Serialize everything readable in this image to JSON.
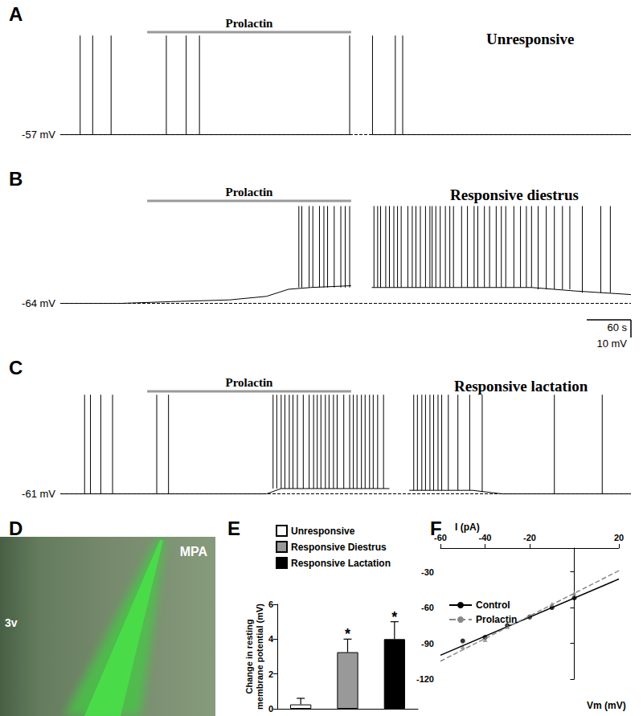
{
  "chart_data": [
    {
      "panel": "A",
      "type": "line",
      "title": "Unresponsive",
      "color": "#000000",
      "x": [
        0,
        395,
        409,
        423,
        775
      ],
      "values": [
        -57,
        -57,
        null,
        -57,
        -57
      ],
      "spikes": [
        {
          "base": -57,
          "times": [
            27,
            44,
            69,
            144,
            171,
            189,
            393,
            424,
            455,
            465
          ]
        }
      ],
      "spike_peak": -1,
      "treatment": {
        "label": "Prolactin",
        "start": 118,
        "end": 395
      },
      "xlim": [
        0,
        775
      ],
      "ylim": [
        -64,
        10
      ],
      "yticks": [
        {
          "value": -57,
          "label": "-57 mV"
        }
      ],
      "grid": true,
      "tick_labels": "y"
    },
    {
      "panel": "B",
      "type": "line",
      "title": "Responsive diestrus",
      "color": "#000000",
      "x": [
        0,
        80,
        150,
        230,
        280,
        310,
        340,
        395,
        409,
        423,
        640,
        700,
        775
      ],
      "values": [
        -64,
        -64,
        -63,
        -62,
        -60,
        -56,
        -55,
        -54,
        null,
        -55,
        -55,
        -57,
        -59
      ],
      "spikes": [
        {
          "base": -55,
          "times": [
            324,
            328,
            338,
            343,
            352,
            358,
            363,
            372,
            381,
            387,
            393
          ]
        },
        {
          "base": -55,
          "times": [
            426,
            431,
            435,
            442,
            447,
            453,
            458,
            463,
            472,
            478,
            483,
            489,
            496,
            502,
            505,
            510,
            516,
            523,
            529,
            534,
            545,
            553,
            562,
            567,
            576,
            583,
            592,
            599,
            605,
            616,
            625,
            633,
            640
          ]
        },
        {
          "base": -56,
          "times": [
            649,
            660,
            671,
            682,
            692
          ]
        },
        {
          "base": -58,
          "times": [
            709,
            734,
            747
          ]
        }
      ],
      "spike_peak": -9,
      "treatment": {
        "label": "Prolactin",
        "start": 118,
        "end": 395
      },
      "scale_bar": {
        "x": 60,
        "y": 10,
        "x_label": "60 s",
        "y_label": "10 mV"
      },
      "xlim": [
        0,
        775
      ],
      "ylim": [
        -71,
        3
      ],
      "yticks": [
        {
          "value": -64,
          "label": "-64 mV"
        }
      ],
      "grid": true,
      "tick_labels": "y"
    },
    {
      "panel": "C",
      "type": "line",
      "title": "Responsive lactation",
      "color": "#000000",
      "x": [
        0,
        280,
        300,
        447,
        460,
        474,
        560,
        600,
        775
      ],
      "values": [
        -61,
        -61,
        -58,
        -58,
        null,
        -59,
        -59,
        -61,
        -61
      ],
      "spikes": [
        {
          "base": -61,
          "times": [
            33,
            41,
            55,
            71,
            131,
            147
          ]
        },
        {
          "base": -58,
          "times": [
            289,
            294,
            300,
            305,
            311,
            316,
            322,
            330,
            338,
            344,
            349,
            354,
            360,
            365,
            371,
            376,
            385,
            393,
            398,
            403,
            409,
            414,
            420,
            425,
            431,
            439
          ]
        },
        {
          "base": -59,
          "times": [
            480,
            485,
            491,
            496,
            502,
            507,
            513,
            518,
            527,
            540,
            556
          ]
        },
        {
          "base": -60,
          "times": [
            573
          ]
        },
        {
          "base": -61,
          "times": [
            671,
            736
          ]
        }
      ],
      "spike_peak": -5,
      "treatment": {
        "label": "Prolactin",
        "start": 118,
        "end": 395
      },
      "xlim": [
        0,
        775
      ],
      "ylim": [
        -68,
        6
      ],
      "yticks": [
        {
          "value": -61,
          "label": "-61 mV"
        }
      ],
      "grid": true,
      "tick_labels": "y"
    },
    {
      "panel": "D",
      "type": "image",
      "labels": [
        "MPA",
        "3v"
      ]
    },
    {
      "panel": "E",
      "type": "bar",
      "categories": [
        "Unresponsive",
        "Responsive Diestrus",
        "Responsive Lactation"
      ],
      "values": [
        0.25,
        3.25,
        4.0
      ],
      "errors": [
        0.35,
        0.75,
        1.0
      ],
      "significance": [
        null,
        "*",
        "*"
      ],
      "colors": [
        "#ffffff",
        "#999999",
        "#000000"
      ],
      "ylabel": "Change in resting\nmembrane potential (mV)",
      "ylim": [
        0,
        6
      ],
      "yticks": [
        0,
        2,
        4,
        6
      ],
      "legend": "top-left",
      "tick_labels": "y"
    },
    {
      "panel": "F",
      "type": "line",
      "xlabel": "I (pA)",
      "ylabel": "Vm (mV)",
      "xlim": [
        -60,
        20
      ],
      "xticks": [
        -60,
        -40,
        -20,
        20
      ],
      "ylim": [
        -120,
        -10
      ],
      "yticks": [
        -120,
        -90,
        -60,
        -30
      ],
      "legend": "left",
      "series": [
        {
          "name": "Control",
          "color": "#000000",
          "marker": "circle",
          "line_style": "solid",
          "x": [
            -50,
            -40,
            -30,
            -20,
            -10,
            0
          ],
          "values": [
            -88,
            -85,
            -75,
            -68,
            -60,
            -52
          ],
          "fit_x": [
            -60,
            20
          ],
          "fit_values": [
            -100,
            -36
          ]
        },
        {
          "name": "Prolactin",
          "color": "#888888",
          "marker": "triangle",
          "line_style": "dashed",
          "x": [
            -50,
            -40,
            -30,
            -20,
            -10,
            0
          ],
          "values": [
            -93,
            -87,
            -76,
            -67,
            -57,
            -48
          ],
          "fit_x": [
            -60,
            20
          ],
          "fit_values": [
            -105,
            -29
          ]
        }
      ]
    }
  ]
}
